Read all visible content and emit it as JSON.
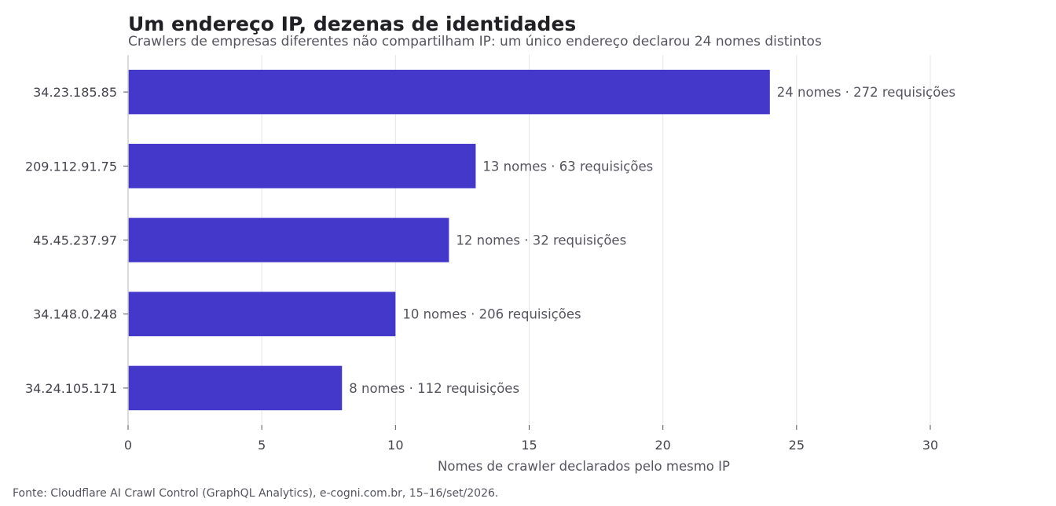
{
  "chart_data": {
    "type": "bar",
    "orientation": "horizontal",
    "title": "Um endereço IP, dezenas de identidades",
    "subtitle": "Crawlers de empresas diferentes não compartilham IP: um único endereço declarou 24 nomes distintos",
    "xlabel": "Nomes de crawler declarados pelo mesmo IP",
    "ylabel": "",
    "xlim": [
      0,
      30
    ],
    "xticks": [
      0,
      5,
      10,
      15,
      20,
      25,
      30
    ],
    "grid": "vertical",
    "bar_color": "#4338ca",
    "categories": [
      "34.23.185.85",
      "209.112.91.75",
      "45.45.237.97",
      "34.148.0.248",
      "34.24.105.171"
    ],
    "values": [
      24,
      13,
      12,
      10,
      8
    ],
    "data_labels": [
      "24 nomes · 272 requisições",
      "13 nomes · 63 requisições",
      "12 nomes · 32 requisições",
      "10 nomes · 206 requisições",
      "8 nomes · 112 requisições"
    ]
  },
  "source": "Fonte: Cloudflare AI Crawl Control (GraphQL Analytics), e-cogni.com.br, 15–16/set/2026."
}
